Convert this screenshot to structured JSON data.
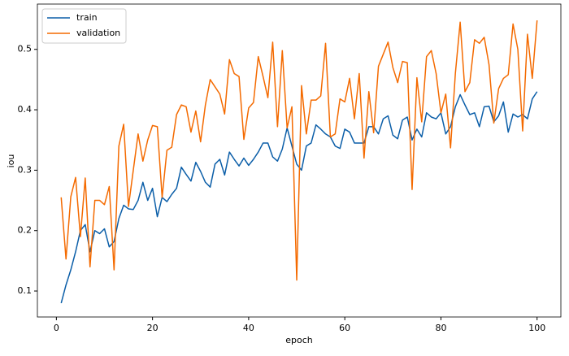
{
  "chart_data": {
    "type": "line",
    "xlabel": "epoch",
    "ylabel": "iou",
    "x": [
      1,
      2,
      3,
      4,
      5,
      6,
      7,
      8,
      9,
      10,
      11,
      12,
      13,
      14,
      15,
      16,
      17,
      18,
      19,
      20,
      21,
      22,
      23,
      24,
      25,
      26,
      27,
      28,
      29,
      30,
      31,
      32,
      33,
      34,
      35,
      36,
      37,
      38,
      39,
      40,
      41,
      42,
      43,
      44,
      45,
      46,
      47,
      48,
      49,
      50,
      51,
      52,
      53,
      54,
      55,
      56,
      57,
      58,
      59,
      60,
      61,
      62,
      63,
      64,
      65,
      66,
      67,
      68,
      69,
      70,
      71,
      72,
      73,
      74,
      75,
      76,
      77,
      78,
      79,
      80,
      81,
      82,
      83,
      84,
      85,
      86,
      87,
      88,
      89,
      90,
      91,
      92,
      93,
      94,
      95,
      96,
      97,
      98,
      99,
      100
    ],
    "series": [
      {
        "name": "train",
        "color": "#0b5ea8",
        "values": [
          0.08,
          0.11,
          0.135,
          0.165,
          0.2,
          0.21,
          0.165,
          0.2,
          0.195,
          0.203,
          0.173,
          0.182,
          0.22,
          0.242,
          0.236,
          0.235,
          0.25,
          0.28,
          0.25,
          0.27,
          0.223,
          0.255,
          0.248,
          0.26,
          0.27,
          0.305,
          0.293,
          0.282,
          0.313,
          0.298,
          0.28,
          0.272,
          0.31,
          0.318,
          0.292,
          0.33,
          0.318,
          0.307,
          0.32,
          0.308,
          0.318,
          0.33,
          0.345,
          0.345,
          0.322,
          0.315,
          0.335,
          0.37,
          0.34,
          0.31,
          0.3,
          0.34,
          0.345,
          0.375,
          0.368,
          0.36,
          0.355,
          0.34,
          0.336,
          0.368,
          0.363,
          0.345,
          0.345,
          0.345,
          0.372,
          0.372,
          0.36,
          0.385,
          0.39,
          0.358,
          0.352,
          0.383,
          0.388,
          0.35,
          0.368,
          0.355,
          0.395,
          0.388,
          0.385,
          0.395,
          0.36,
          0.372,
          0.405,
          0.425,
          0.408,
          0.392,
          0.395,
          0.372,
          0.405,
          0.406,
          0.38,
          0.39,
          0.413,
          0.363,
          0.393,
          0.388,
          0.392,
          0.385,
          0.418,
          0.43
        ]
      },
      {
        "name": "validation",
        "color": "#f46a00",
        "values": [
          0.255,
          0.153,
          0.256,
          0.288,
          0.19,
          0.287,
          0.14,
          0.25,
          0.25,
          0.243,
          0.273,
          0.135,
          0.34,
          0.376,
          0.24,
          0.3,
          0.36,
          0.315,
          0.35,
          0.374,
          0.372,
          0.255,
          0.333,
          0.338,
          0.392,
          0.408,
          0.405,
          0.363,
          0.398,
          0.347,
          0.408,
          0.45,
          0.438,
          0.426,
          0.393,
          0.483,
          0.46,
          0.455,
          0.351,
          0.403,
          0.412,
          0.488,
          0.455,
          0.42,
          0.512,
          0.372,
          0.498,
          0.37,
          0.405,
          0.118,
          0.44,
          0.36,
          0.416,
          0.416,
          0.423,
          0.51,
          0.355,
          0.36,
          0.418,
          0.413,
          0.452,
          0.385,
          0.46,
          0.32,
          0.43,
          0.362,
          0.472,
          0.492,
          0.512,
          0.47,
          0.445,
          0.48,
          0.478,
          0.268,
          0.453,
          0.38,
          0.488,
          0.498,
          0.46,
          0.395,
          0.426,
          0.337,
          0.46,
          0.545,
          0.43,
          0.445,
          0.516,
          0.51,
          0.52,
          0.475,
          0.378,
          0.435,
          0.452,
          0.458,
          0.542,
          0.5,
          0.365,
          0.525,
          0.452,
          0.548
        ]
      }
    ],
    "xlim": [
      -3.95,
      104.95
    ],
    "xticks": [
      0,
      20,
      40,
      60,
      80,
      100
    ],
    "ylim": [
      0.057,
      0.575
    ],
    "yticks": [
      0.1,
      0.2,
      0.3,
      0.4,
      0.5
    ],
    "legend": "upper left",
    "grid": false
  }
}
